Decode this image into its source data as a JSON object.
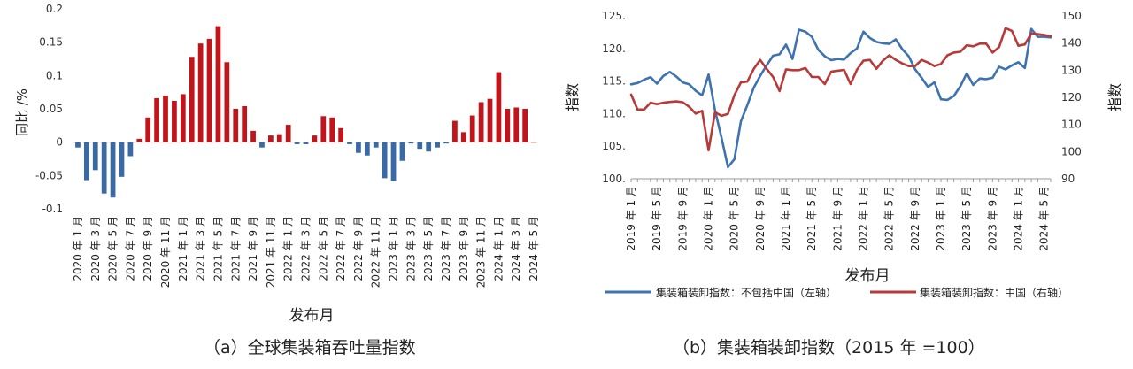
{
  "chart_data": [
    {
      "type": "bar",
      "ylabel": "同比 /%",
      "xlabel": "发布月",
      "ylim": [
        -0.1,
        0.2
      ],
      "yticks": [
        "0.2",
        "0.15",
        "0.1",
        "0.05",
        "0",
        "-0.05",
        "-0.1"
      ],
      "ytick_values": [
        0.2,
        0.15,
        0.1,
        0.05,
        0,
        -0.05,
        -0.1
      ],
      "positive_color": "#c0161b",
      "negative_color": "#3a6aa6",
      "categories": [
        "2020年1月",
        "2020年2月",
        "2020年3月",
        "2020年4月",
        "2020年5月",
        "2020年6月",
        "2020年7月",
        "2020年8月",
        "2020年9月",
        "2020年10月",
        "2020年11月",
        "2020年12月",
        "2021年1月",
        "2021年2月",
        "2021年3月",
        "2021年4月",
        "2021年5月",
        "2021年6月",
        "2021年7月",
        "2021年8月",
        "2021年9月",
        "2021年10月",
        "2021年11月",
        "2021年12月",
        "2022年1月",
        "2022年2月",
        "2022年3月",
        "2022年4月",
        "2022年5月",
        "2022年6月",
        "2022年7月",
        "2022年8月",
        "2022年9月",
        "2022年10月",
        "2022年11月",
        "2022年12月",
        "2023年1月",
        "2023年2月",
        "2023年3月",
        "2023年4月",
        "2023年5月",
        "2023年6月",
        "2023年7月",
        "2023年8月",
        "2023年9月",
        "2023年10月",
        "2023年11月",
        "2023年12月",
        "2024年1月",
        "2024年2月",
        "2024年3月",
        "2024年4月",
        "2024年5月"
      ],
      "values": [
        -0.008,
        -0.057,
        -0.042,
        -0.077,
        -0.083,
        -0.052,
        -0.021,
        0.005,
        0.037,
        0.066,
        0.07,
        0.062,
        0.072,
        0.128,
        0.148,
        0.155,
        0.174,
        0.12,
        0.05,
        0.054,
        0.017,
        -0.008,
        0.01,
        0.012,
        0.026,
        -0.003,
        -0.003,
        0.01,
        0.039,
        0.037,
        0.021,
        -0.003,
        -0.016,
        -0.02,
        -0.008,
        -0.054,
        -0.058,
        -0.028,
        -0.002,
        -0.01,
        -0.014,
        -0.008,
        -0.002,
        0.032,
        0.015,
        0.04,
        0.06,
        0.065,
        0.105,
        0.05,
        0.052,
        0.05,
        0
      ],
      "xtick_labels": [
        "2020 年 1 月",
        "2020 年 3 月",
        "2020 年 5 月",
        "2020 年 7 月",
        "2020 年 9 月",
        "2020 年 11 月",
        "2021 年 1 月",
        "2021 年 3 月",
        "2021 年 5 月",
        "2021 年 7 月",
        "2021 年 9 月",
        "2021 年 11 月",
        "2022 年 1 月",
        "2022 年 3 月",
        "2022 年 5 月",
        "2022 年 7 月",
        "2022 年 9 月",
        "2022 年 11 月",
        "2023 年 1 月",
        "2023 年 3 月",
        "2023 年 5 月",
        "2023 年 7 月",
        "2023 年 9 月",
        "2023 年 11 月",
        "2024 年 1 月",
        "2024 年 3 月",
        "2024 年 5 月"
      ],
      "caption": "（a）全球集装箱吞吐量指数"
    },
    {
      "type": "line",
      "ylabel_left": "指数",
      "ylabel_right": "指数",
      "xlabel": "发布月",
      "ylim_left": [
        100,
        125
      ],
      "ylim_right": [
        90,
        150
      ],
      "yticks_left": [
        "125.",
        "120.",
        "115.",
        "110.",
        "105.",
        "100."
      ],
      "ytick_values_left": [
        125,
        120,
        115,
        110,
        105,
        100
      ],
      "yticks_right": [
        "150",
        "140",
        "130",
        "120",
        "110",
        "100",
        "90"
      ],
      "ytick_values_right": [
        150,
        140,
        130,
        120,
        110,
        100,
        90
      ],
      "xtick_labels": [
        "2019 年 1 月",
        "2019 年 5 月",
        "2019 年 9 月",
        "2020 年 1 月",
        "2020 年 5 月",
        "2020 年 9 月",
        "2021 年 1 月",
        "2021 年 5 月",
        "2021 年 9 月",
        "2022 年 1 月",
        "2022 年 5 月",
        "2022 年 9 月",
        "2023 年 1 月",
        "2023 年 5 月",
        "2023 年 9 月",
        "2024 年 1 月",
        "2024 年 5 月"
      ],
      "series": [
        {
          "name": "集装箱装卸指数：不包括中国（左轴）",
          "axis": "left",
          "color": "#3f73b0",
          "values": [
            114.5,
            114.7,
            115.2,
            115.6,
            114.6,
            115.8,
            116.4,
            115.7,
            114.8,
            114.5,
            113.5,
            112.8,
            116.0,
            110.5,
            106.3,
            101.8,
            103.0,
            108.8,
            111.3,
            114.0,
            115.8,
            117.4,
            118.9,
            119.1,
            120.6,
            118.4,
            122.9,
            122.6,
            121.8,
            119.8,
            118.8,
            118.2,
            118.4,
            118.3,
            119.3,
            120.0,
            122.6,
            121.6,
            121.0,
            120.8,
            120.7,
            121.4,
            119.9,
            118.8,
            116.8,
            115.5,
            114.1,
            114.8,
            112.2,
            112.1,
            112.7,
            114.2,
            116.2,
            114.4,
            115.4,
            115.3,
            115.5,
            117.2,
            116.8,
            117.4,
            117.9,
            117.0,
            123.0,
            121.8,
            121.8,
            121.7
          ]
        },
        {
          "name": "集装箱装卸指数：中国（右轴）",
          "axis": "right",
          "color": "#b73a3a",
          "values": [
            121.0,
            115.5,
            115.5,
            118.0,
            117.5,
            118.0,
            118.3,
            118.5,
            118.2,
            116.5,
            114.0,
            115.0,
            100.5,
            114.5,
            113.2,
            113.9,
            120.8,
            125.5,
            125.8,
            130.5,
            133.8,
            130.5,
            127.5,
            122.3,
            130.3,
            130.0,
            130.0,
            130.8,
            127.5,
            127.5,
            124.9,
            129.5,
            129.8,
            130.1,
            124.9,
            130.2,
            133.5,
            133.8,
            130.5,
            133.5,
            135.5,
            133.8,
            132.5,
            131.5,
            131.5,
            133.8,
            132.8,
            131.5,
            132.3,
            135.5,
            136.5,
            136.8,
            139.2,
            138.8,
            139.8,
            139.8,
            136.5,
            138.5,
            145.5,
            144.5,
            139.0,
            139.5,
            143.5,
            143.3,
            143.0,
            142.5
          ]
        }
      ],
      "caption": "（b）集装箱装卸指数（2015 年 =100）"
    }
  ]
}
